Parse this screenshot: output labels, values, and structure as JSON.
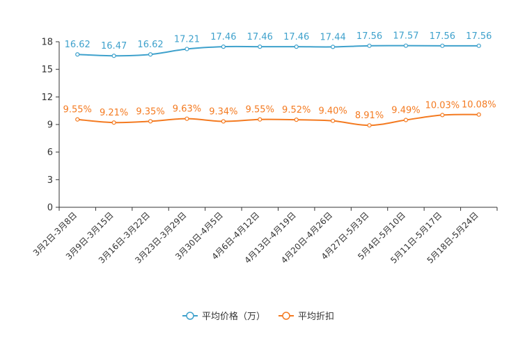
{
  "chart_data": {
    "type": "line",
    "title": "",
    "xlabel": "",
    "ylabel": "",
    "ylim": [
      0,
      18
    ],
    "yticks": [
      0,
      3,
      6,
      9,
      12,
      15,
      18
    ],
    "grid": false,
    "legend_position": "bottom-center",
    "categories": [
      "3月2日-3月8日",
      "3月9日-3月15日",
      "3月16日-3月22日",
      "3月23日-3月29日",
      "3月30日-4月5日",
      "4月6日-4月12日",
      "4月13日-4月19日",
      "4月20日-4月26日",
      "4月27日-5月3日",
      "5月4日-5月10日",
      "5月11日-5月17日",
      "5月18日-5月24日"
    ],
    "series": [
      {
        "name": "平均价格（万）",
        "color": "#3ea1cc",
        "values": [
          16.62,
          16.47,
          16.62,
          17.21,
          17.46,
          17.46,
          17.46,
          17.44,
          17.56,
          17.57,
          17.56,
          17.56
        ],
        "labels": [
          "16.62",
          "16.47",
          "16.62",
          "17.21",
          "17.46",
          "17.46",
          "17.46",
          "17.44",
          "17.56",
          "17.57",
          "17.56",
          "17.56"
        ]
      },
      {
        "name": "平均折扣",
        "color": "#f47a20",
        "values": [
          9.55,
          9.21,
          9.35,
          9.63,
          9.34,
          9.55,
          9.52,
          9.4,
          8.91,
          9.49,
          10.03,
          10.08
        ],
        "labels": [
          "9.55%",
          "9.21%",
          "9.35%",
          "9.63%",
          "9.34%",
          "9.55%",
          "9.52%",
          "9.40%",
          "8.91%",
          "9.49%",
          "10.03%",
          "10.08%"
        ]
      }
    ]
  }
}
